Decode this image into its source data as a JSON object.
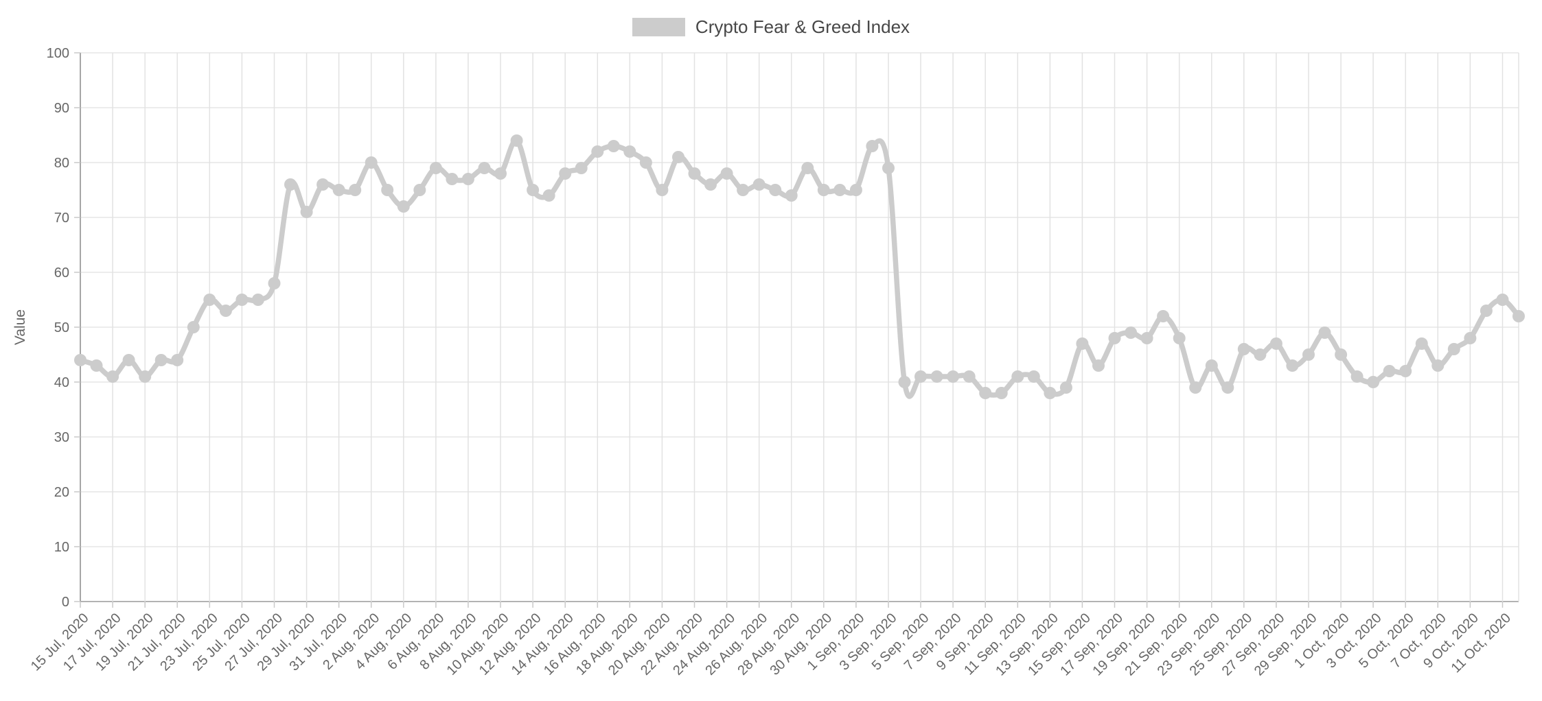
{
  "legend": {
    "label": "Crypto Fear & Greed Index",
    "swatch_color": "#cccccc"
  },
  "colors": {
    "background": "#ffffff",
    "series": "#cccccc",
    "grid_horizontal": "#e6e6e6",
    "grid_vertical": "#e2e2e2",
    "axis_line": "#b2b2b2",
    "left_axis_line": "#a6a6a6",
    "tick": "#c9c9c9",
    "axis_label": "#666666",
    "legend_text": "#474747"
  },
  "chart_data": {
    "type": "line",
    "smooth": true,
    "title": "Crypto Fear & Greed Index",
    "series_name": "Crypto Fear & Greed Index",
    "xlabel": "",
    "ylabel": "Value",
    "ylim": [
      0,
      100
    ],
    "y_ticks": [
      0,
      10,
      20,
      30,
      40,
      50,
      60,
      70,
      80,
      90,
      100
    ],
    "x_label_every": 2,
    "grid": true,
    "legend_position": "top-center",
    "marker": "circle",
    "categories": [
      "15 Jul, 2020",
      "16 Jul, 2020",
      "17 Jul, 2020",
      "18 Jul, 2020",
      "19 Jul, 2020",
      "20 Jul, 2020",
      "21 Jul, 2020",
      "22 Jul, 2020",
      "23 Jul, 2020",
      "24 Jul, 2020",
      "25 Jul, 2020",
      "26 Jul, 2020",
      "27 Jul, 2020",
      "28 Jul, 2020",
      "29 Jul, 2020",
      "30 Jul, 2020",
      "31 Jul, 2020",
      "1 Aug, 2020",
      "2 Aug, 2020",
      "3 Aug, 2020",
      "4 Aug, 2020",
      "5 Aug, 2020",
      "6 Aug, 2020",
      "7 Aug, 2020",
      "8 Aug, 2020",
      "9 Aug, 2020",
      "10 Aug, 2020",
      "11 Aug, 2020",
      "12 Aug, 2020",
      "13 Aug, 2020",
      "14 Aug, 2020",
      "15 Aug, 2020",
      "16 Aug, 2020",
      "17 Aug, 2020",
      "18 Aug, 2020",
      "19 Aug, 2020",
      "20 Aug, 2020",
      "21 Aug, 2020",
      "22 Aug, 2020",
      "23 Aug, 2020",
      "24 Aug, 2020",
      "25 Aug, 2020",
      "26 Aug, 2020",
      "27 Aug, 2020",
      "28 Aug, 2020",
      "29 Aug, 2020",
      "30 Aug, 2020",
      "31 Aug, 2020",
      "1 Sep, 2020",
      "2 Sep, 2020",
      "3 Sep, 2020",
      "4 Sep, 2020",
      "5 Sep, 2020",
      "6 Sep, 2020",
      "7 Sep, 2020",
      "8 Sep, 2020",
      "9 Sep, 2020",
      "10 Sep, 2020",
      "11 Sep, 2020",
      "12 Sep, 2020",
      "13 Sep, 2020",
      "14 Sep, 2020",
      "15 Sep, 2020",
      "16 Sep, 2020",
      "17 Sep, 2020",
      "18 Sep, 2020",
      "19 Sep, 2020",
      "20 Sep, 2020",
      "21 Sep, 2020",
      "22 Sep, 2020",
      "23 Sep, 2020",
      "24 Sep, 2020",
      "25 Sep, 2020",
      "26 Sep, 2020",
      "27 Sep, 2020",
      "28 Sep, 2020",
      "29 Sep, 2020",
      "30 Sep, 2020",
      "1 Oct, 2020",
      "2 Oct, 2020",
      "3 Oct, 2020",
      "4 Oct, 2020",
      "5 Oct, 2020",
      "6 Oct, 2020",
      "7 Oct, 2020",
      "8 Oct, 2020",
      "9 Oct, 2020",
      "10 Oct, 2020",
      "11 Oct, 2020",
      "12 Oct, 2020"
    ],
    "values": [
      44,
      43,
      41,
      44,
      41,
      44,
      44,
      50,
      55,
      53,
      55,
      55,
      58,
      76,
      71,
      76,
      75,
      75,
      80,
      75,
      72,
      75,
      79,
      77,
      77,
      79,
      78,
      84,
      75,
      74,
      78,
      79,
      82,
      83,
      82,
      80,
      75,
      81,
      78,
      76,
      78,
      75,
      76,
      75,
      74,
      79,
      75,
      75,
      75,
      83,
      79,
      40,
      41,
      41,
      41,
      41,
      38,
      38,
      41,
      41,
      38,
      39,
      47,
      43,
      48,
      49,
      48,
      52,
      48,
      39,
      43,
      39,
      46,
      45,
      47,
      43,
      45,
      49,
      45,
      41,
      40,
      42,
      42,
      47,
      43,
      46,
      48,
      53,
      55,
      52
    ]
  }
}
